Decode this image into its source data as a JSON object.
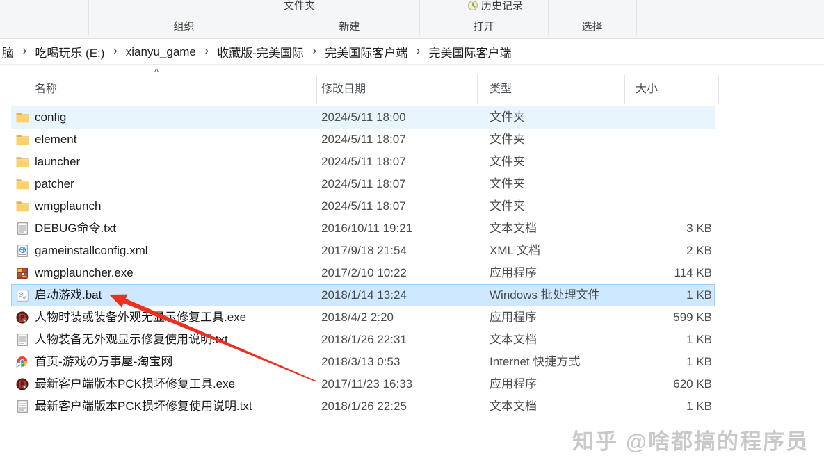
{
  "ribbon": {
    "partial_buttons": {
      "new_folder": "文件夹",
      "history": "历史记录"
    },
    "groups": [
      {
        "label": "组织"
      },
      {
        "label": "新建"
      },
      {
        "label": "打开"
      },
      {
        "label": "选择"
      }
    ]
  },
  "breadcrumb": {
    "chevron": "›",
    "items": [
      "脑",
      "吃喝玩乐 (E:)",
      "xianyu_game",
      "收藏版-完美国际",
      "完美国际客户端",
      "完美国际客户端"
    ]
  },
  "list_header": {
    "sort_caret": "^",
    "columns": [
      {
        "key": "name",
        "label": "名称"
      },
      {
        "key": "date",
        "label": "修改日期"
      },
      {
        "key": "type",
        "label": "类型"
      },
      {
        "key": "size",
        "label": "大小"
      }
    ]
  },
  "files": [
    {
      "icon": "folder-icon",
      "name": "config",
      "date": "2024/5/11 18:00",
      "type": "文件夹",
      "size": "",
      "state": "hover"
    },
    {
      "icon": "folder-icon",
      "name": "element",
      "date": "2024/5/11 18:07",
      "type": "文件夹",
      "size": "",
      "state": "normal"
    },
    {
      "icon": "folder-icon",
      "name": "launcher",
      "date": "2024/5/11 18:07",
      "type": "文件夹",
      "size": "",
      "state": "normal"
    },
    {
      "icon": "folder-icon",
      "name": "patcher",
      "date": "2024/5/11 18:07",
      "type": "文件夹",
      "size": "",
      "state": "normal"
    },
    {
      "icon": "folder-icon",
      "name": "wmgplaunch",
      "date": "2024/5/11 18:07",
      "type": "文件夹",
      "size": "",
      "state": "normal"
    },
    {
      "icon": "text-file-icon",
      "name": "DEBUG命令.txt",
      "date": "2016/10/11 19:21",
      "type": "文本文档",
      "size": "3 KB",
      "state": "normal"
    },
    {
      "icon": "xml-file-icon",
      "name": "gameinstallconfig.xml",
      "date": "2017/9/18 21:54",
      "type": "XML 文档",
      "size": "2 KB",
      "state": "normal"
    },
    {
      "icon": "game-app-icon",
      "name": "wmgplauncher.exe",
      "date": "2017/2/10 10:22",
      "type": "应用程序",
      "size": "114 KB",
      "state": "normal"
    },
    {
      "icon": "batch-file-icon",
      "name": "启动游戏.bat",
      "date": "2018/1/14 13:24",
      "type": "Windows 批处理文件",
      "size": "1 KB",
      "state": "selected"
    },
    {
      "icon": "repair-tool-icon",
      "name": "人物时装或装备外观无显示修复工具.exe",
      "date": "2018/4/2 2:20",
      "type": "应用程序",
      "size": "599 KB",
      "state": "normal"
    },
    {
      "icon": "text-file-icon",
      "name": "人物装备无外观显示修复使用说明.txt",
      "date": "2018/1/26 22:31",
      "type": "文本文档",
      "size": "1 KB",
      "state": "normal"
    },
    {
      "icon": "internet-shortcut-icon",
      "name": "首页-游戏の万事屋-淘宝网",
      "date": "2018/3/13 0:53",
      "type": "Internet 快捷方式",
      "size": "1 KB",
      "state": "normal"
    },
    {
      "icon": "repair-tool-icon",
      "name": "最新客户端版本PCK损坏修复工具.exe",
      "date": "2017/11/23 16:33",
      "type": "应用程序",
      "size": "620 KB",
      "state": "normal"
    },
    {
      "icon": "text-file-icon",
      "name": "最新客户端版本PCK损坏修复使用说明.txt",
      "date": "2018/1/26 22:25",
      "type": "文本文档",
      "size": "1 KB",
      "state": "normal"
    }
  ],
  "watermark": "知乎 @啥都搞的程序员",
  "colors": {
    "selection_fill": "#cde8ff",
    "selection_border": "#9bd0f5",
    "hover_fill": "#e9f5fd",
    "annotation_arrow": "#ee2e1e",
    "folder_yellow": "#f9d269"
  }
}
